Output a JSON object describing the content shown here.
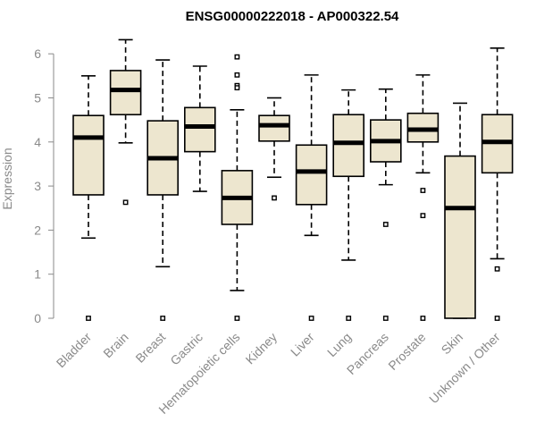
{
  "chart_data": {
    "type": "boxplot",
    "title": "ENSG00000222018 - AP000322.54",
    "xlabel": "",
    "ylabel": "Expression",
    "ylim": [
      -0.25,
      6.4
    ],
    "yticks": [
      0,
      1,
      2,
      3,
      4,
      5,
      6
    ],
    "grid": false,
    "colors": {
      "box_fill": "#ede6cf",
      "stroke": "#000000",
      "axis_text": "#8a8a8a"
    },
    "categories": [
      "Bladder",
      "Brain",
      "Breast",
      "Gastric",
      "Hematopoietic cells",
      "Kidney",
      "Liver",
      "Lung",
      "Pancreas",
      "Prostate",
      "Skin",
      "Unknown / Other"
    ],
    "boxes": [
      {
        "name": "Bladder",
        "whisker_low": 1.82,
        "q1": 2.8,
        "median": 4.1,
        "q3": 4.6,
        "whisker_high": 5.5,
        "outliers": [
          0
        ]
      },
      {
        "name": "Brain",
        "whisker_low": 3.98,
        "q1": 4.62,
        "median": 5.18,
        "q3": 5.62,
        "whisker_high": 6.32,
        "outliers": [
          2.63
        ]
      },
      {
        "name": "Breast",
        "whisker_low": 1.17,
        "q1": 2.8,
        "median": 3.63,
        "q3": 4.48,
        "whisker_high": 5.86,
        "outliers": [
          0
        ]
      },
      {
        "name": "Gastric",
        "whisker_low": 2.88,
        "q1": 3.78,
        "median": 4.35,
        "q3": 4.78,
        "whisker_high": 5.72,
        "outliers": []
      },
      {
        "name": "Hematopoietic cells",
        "whisker_low": 0.63,
        "q1": 2.13,
        "median": 2.73,
        "q3": 3.35,
        "whisker_high": 4.73,
        "outliers": [
          0,
          5.28,
          5.23,
          5.52,
          5.93
        ]
      },
      {
        "name": "Kidney",
        "whisker_low": 3.2,
        "q1": 4.02,
        "median": 4.38,
        "q3": 4.6,
        "whisker_high": 5.0,
        "outliers": [
          2.73
        ]
      },
      {
        "name": "Liver",
        "whisker_low": 1.88,
        "q1": 2.58,
        "median": 3.33,
        "q3": 3.93,
        "whisker_high": 5.52,
        "outliers": [
          0
        ]
      },
      {
        "name": "Lung",
        "whisker_low": 1.32,
        "q1": 3.22,
        "median": 3.98,
        "q3": 4.62,
        "whisker_high": 5.18,
        "outliers": [
          0
        ]
      },
      {
        "name": "Pancreas",
        "whisker_low": 3.03,
        "q1": 3.55,
        "median": 4.02,
        "q3": 4.5,
        "whisker_high": 5.2,
        "outliers": [
          0,
          2.13
        ]
      },
      {
        "name": "Prostate",
        "whisker_low": 3.3,
        "q1": 4.0,
        "median": 4.28,
        "q3": 4.65,
        "whisker_high": 5.52,
        "outliers": [
          0,
          2.33,
          2.9
        ]
      },
      {
        "name": "Skin",
        "whisker_low": 0.0,
        "q1": 0.0,
        "median": 2.5,
        "q3": 3.68,
        "whisker_high": 4.88,
        "outliers": []
      },
      {
        "name": "Unknown / Other",
        "whisker_low": 1.35,
        "q1": 3.3,
        "median": 4.0,
        "q3": 4.62,
        "whisker_high": 6.13,
        "outliers": [
          0,
          1.12
        ]
      }
    ]
  }
}
